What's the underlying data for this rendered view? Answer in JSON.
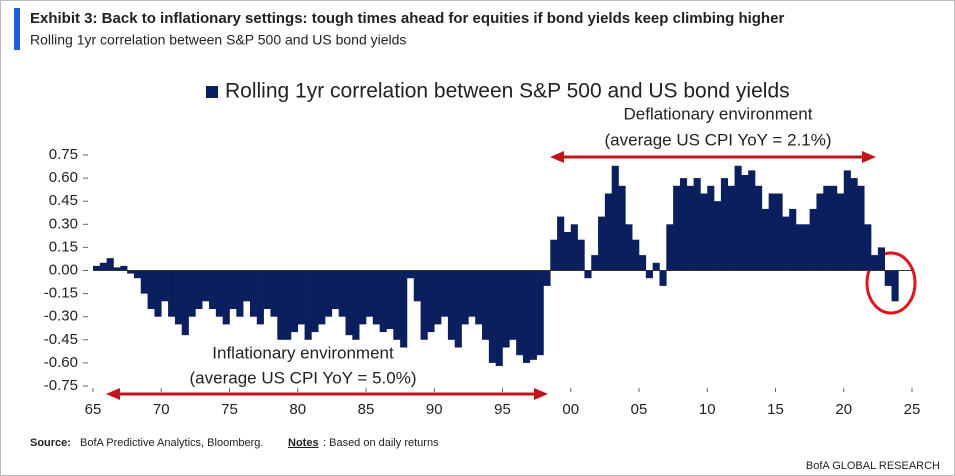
{
  "chart_data": {
    "type": "bar",
    "title": "Exhibit 3: Back to inflationary settings: tough times ahead for equities if bond yields keep climbing higher",
    "subtitle": "Rolling 1yr correlation between S&P 500 and US bond yields",
    "source_label": "Source:",
    "source_text": "BofA Predictive Analytics, Bloomberg.",
    "notes_label": "Notes",
    "notes_text": ": Based on daily returns",
    "footer": "BofA GLOBAL RESEARCH",
    "annotations": [
      "Deflationary environment",
      "(average US CPI YoY = 2.1%)",
      "Inflationary environment",
      "(average US CPI YoY = 5.0%)"
    ],
    "legend": true,
    "x": [
      1965,
      1965.5,
      1966,
      1966.5,
      1967,
      1967.5,
      1968,
      1968.5,
      1969,
      1969.5,
      1970,
      1970.5,
      1971,
      1971.5,
      1972,
      1972.5,
      1973,
      1973.5,
      1974,
      1974.5,
      1975,
      1975.5,
      1976,
      1976.5,
      1977,
      1977.5,
      1978,
      1978.5,
      1979,
      1979.5,
      1980,
      1980.5,
      1981,
      1981.5,
      1982,
      1982.5,
      1983,
      1983.5,
      1984,
      1984.5,
      1985,
      1985.5,
      1986,
      1986.5,
      1987,
      1987.5,
      1988,
      1988.5,
      1989,
      1989.5,
      1990,
      1990.5,
      1991,
      1991.5,
      1992,
      1992.5,
      1993,
      1993.5,
      1994,
      1994.5,
      1995,
      1995.5,
      1996,
      1996.5,
      1997,
      1997.5,
      1998,
      1998.5,
      1999,
      1999.5,
      2000,
      2000.5,
      2001,
      2001.5,
      2002,
      2002.5,
      2003,
      2003.5,
      2004,
      2004.5,
      2005,
      2005.5,
      2006,
      2006.5,
      2007,
      2007.5,
      2008,
      2008.5,
      2009,
      2009.5,
      2010,
      2010.5,
      2011,
      2011.5,
      2012,
      2012.5,
      2013,
      2013.5,
      2014,
      2014.5,
      2015,
      2015.5,
      2016,
      2016.5,
      2017,
      2017.5,
      2018,
      2018.5,
      2019,
      2019.5,
      2020,
      2020.5,
      2021,
      2021.5,
      2022,
      2022.5,
      2023,
      2023.5
    ],
    "series": [
      {
        "name": "Rolling 1yr correlation between S&P 500 and US bond yields",
        "color": "#0b1f5e",
        "values": [
          0.03,
          0.05,
          0.08,
          0.02,
          0.03,
          -0.02,
          -0.05,
          -0.15,
          -0.25,
          -0.3,
          -0.2,
          -0.3,
          -0.35,
          -0.42,
          -0.3,
          -0.25,
          -0.2,
          -0.25,
          -0.3,
          -0.35,
          -0.25,
          -0.3,
          -0.2,
          -0.3,
          -0.35,
          -0.25,
          -0.3,
          -0.45,
          -0.45,
          -0.4,
          -0.35,
          -0.45,
          -0.4,
          -0.35,
          -0.3,
          -0.25,
          -0.3,
          -0.42,
          -0.45,
          -0.35,
          -0.3,
          -0.35,
          -0.4,
          -0.38,
          -0.45,
          -0.5,
          -0.05,
          -0.2,
          -0.45,
          -0.4,
          -0.35,
          -0.3,
          -0.45,
          -0.5,
          -0.35,
          -0.3,
          -0.35,
          -0.45,
          -0.6,
          -0.62,
          -0.5,
          -0.45,
          -0.55,
          -0.6,
          -0.58,
          -0.55,
          -0.1,
          0.2,
          0.35,
          0.25,
          0.3,
          0.2,
          -0.05,
          0.1,
          0.35,
          0.5,
          0.68,
          0.55,
          0.3,
          0.2,
          0.1,
          -0.05,
          0.05,
          -0.1,
          0.3,
          0.55,
          0.6,
          0.55,
          0.6,
          0.5,
          0.55,
          0.45,
          0.6,
          0.55,
          0.68,
          0.62,
          0.65,
          0.55,
          0.4,
          0.5,
          0.5,
          0.35,
          0.4,
          0.3,
          0.3,
          0.4,
          0.5,
          0.55,
          0.55,
          0.5,
          0.65,
          0.6,
          0.55,
          0.3,
          0.1,
          0.15,
          -0.1,
          -0.2
        ]
      }
    ],
    "xlim": [
      1965,
      2025
    ],
    "xticks": [
      {
        "value": 1965,
        "label": "65"
      },
      {
        "value": 1970,
        "label": "70"
      },
      {
        "value": 1975,
        "label": "75"
      },
      {
        "value": 1980,
        "label": "80"
      },
      {
        "value": 1985,
        "label": "85"
      },
      {
        "value": 1990,
        "label": "90"
      },
      {
        "value": 1995,
        "label": "95"
      },
      {
        "value": 2000,
        "label": "00"
      },
      {
        "value": 2005,
        "label": "05"
      },
      {
        "value": 2010,
        "label": "10"
      },
      {
        "value": 2015,
        "label": "15"
      },
      {
        "value": 2020,
        "label": "20"
      },
      {
        "value": 2025,
        "label": "25"
      }
    ],
    "ylim": [
      -0.75,
      0.75
    ],
    "yticks": [
      0.75,
      {
        "value": 0.6,
        "label": "0.60"
      },
      0.45,
      {
        "value": 0.3,
        "label": "0.30"
      },
      0.15,
      {
        "value": 0,
        "label": "0.00"
      },
      -0.15,
      {
        "value": -0.3,
        "label": "-0.30"
      },
      -0.45,
      {
        "value": -0.6,
        "label": "-0.60"
      },
      -0.75
    ]
  }
}
